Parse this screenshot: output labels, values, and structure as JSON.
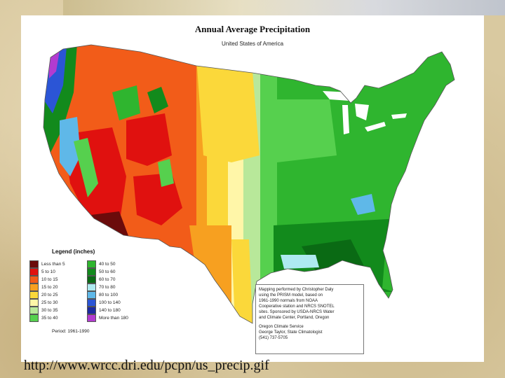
{
  "map": {
    "title": "Annual Average Precipitation",
    "subtitle": "United States of America",
    "legend_title": "Legend (inches)",
    "legend": [
      {
        "label": "Less than 5",
        "color": "#6b0b0b"
      },
      {
        "label": "5 to 10",
        "color": "#e0110f"
      },
      {
        "label": "10 to 15",
        "color": "#f25c19"
      },
      {
        "label": "15 to 20",
        "color": "#f7a020"
      },
      {
        "label": "20 to 25",
        "color": "#fbd83a"
      },
      {
        "label": "25 to 30",
        "color": "#fff6a8"
      },
      {
        "label": "30 to 35",
        "color": "#b8e89a"
      },
      {
        "label": "35 to 40",
        "color": "#56d04e"
      },
      {
        "label": "40 to 50",
        "color": "#2fb52f"
      },
      {
        "label": "50 to 60",
        "color": "#128a1c"
      },
      {
        "label": "60 to 70",
        "color": "#0a6a14"
      },
      {
        "label": "70 to 80",
        "color": "#aeeaf0"
      },
      {
        "label": "80 to 100",
        "color": "#5fb8e8"
      },
      {
        "label": "100 to 140",
        "color": "#2b55d6"
      },
      {
        "label": "140 to 180",
        "color": "#1c2aa0"
      },
      {
        "label": "More than 180",
        "color": "#b23bd0"
      }
    ],
    "period": "Period: 1961-1990",
    "credit_lines": [
      "Mapping performed by Christopher Daly",
      "using the PRISM model, based on",
      "1961-1990 normals from NOAA",
      "Cooperative station and NRCS SNOTEL",
      "sites. Sponsored by USDA-NRCS Water",
      "and Climate Center, Portland, Oregon"
    ],
    "credit_lines_2": [
      "Oregon Climate Service",
      "George Taylor, State Climatologist",
      "(541) 737-5705"
    ]
  },
  "footer": {
    "url": "http://www.wrcc.dri.edu/pcpn/us_precip.gif"
  }
}
